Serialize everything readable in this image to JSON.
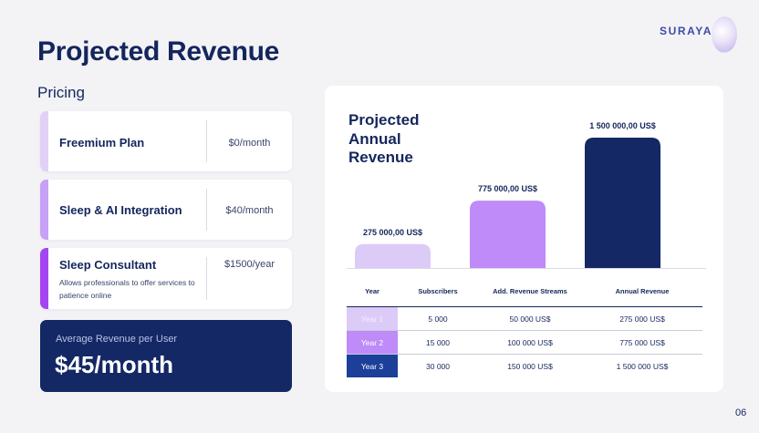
{
  "brand": {
    "logo_text": "SURAYA"
  },
  "page": {
    "title": "Projected Revenue",
    "number": "06"
  },
  "pricing": {
    "heading": "Pricing",
    "plans": [
      {
        "name": "Freemium Plan",
        "price": "$0/month",
        "description": "",
        "accent_color": "#e2d1f7"
      },
      {
        "name": "Sleep & AI Integration",
        "price": "$40/month",
        "description": "",
        "accent_color": "#c7a1f5"
      },
      {
        "name": "Sleep Consultant",
        "price": "$1500/year",
        "description": "Allows professionals to offer services to patience online",
        "accent_color": "#a445f2"
      }
    ],
    "arpu": {
      "label": "Average Revenue per User",
      "value": "$45/month"
    }
  },
  "chart_data": {
    "type": "bar",
    "title": "Projected Annual Revenue",
    "categories": [
      "Year 1",
      "Year 2",
      "Year 3"
    ],
    "values": [
      275000,
      775000,
      1500000
    ],
    "value_labels": [
      "275 000,00 US$",
      "775 000,00 US$",
      "1 500 000,00 US$"
    ],
    "colors": [
      "#dccbf7",
      "#be8bf9",
      "#132864"
    ],
    "xlabel": "",
    "ylabel": "",
    "ylim": [
      0,
      1500000
    ],
    "grid": false
  },
  "table": {
    "columns": [
      "Year",
      "Subscribers",
      "Add. Revenue Streams",
      "Annual Revenue"
    ],
    "rows": [
      {
        "year": "Year 1",
        "subscribers": "5 000",
        "add_revenue": "50 000 US$",
        "annual_revenue": "275 000 US$",
        "color": "#dccbf7"
      },
      {
        "year": "Year 2",
        "subscribers": "15 000",
        "add_revenue": "100 000 US$",
        "annual_revenue": "775 000 US$",
        "color": "#be8bf9"
      },
      {
        "year": "Year 3",
        "subscribers": "30 000",
        "add_revenue": "150 000 US$",
        "annual_revenue": "1 500 000 US$",
        "color": "#1c3f9a"
      }
    ]
  }
}
